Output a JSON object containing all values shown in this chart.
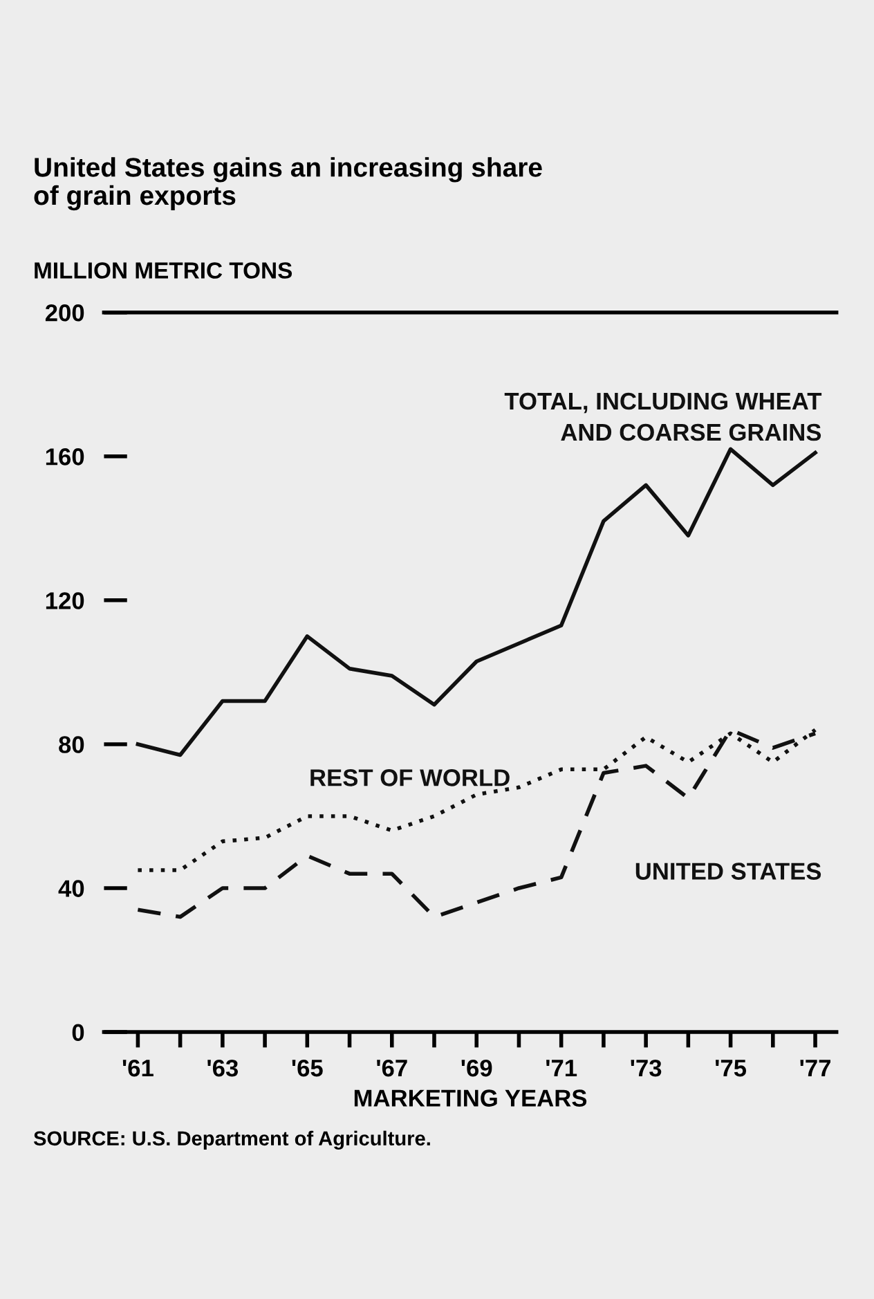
{
  "chart_data": {
    "type": "line",
    "title": "United States gains an increasing share\nof grain exports",
    "ylabel": "MILLION METRIC TONS",
    "xlabel": "MARKETING YEARS",
    "annotations": [
      "SOURCE: U.S. Department of Agriculture."
    ],
    "x": [
      1961,
      1962,
      1963,
      1964,
      1965,
      1966,
      1967,
      1968,
      1969,
      1970,
      1971,
      1972,
      1973,
      1974,
      1975,
      1976,
      1977
    ],
    "series": [
      {
        "name": "TOTAL, INCLUDING WHEAT\nAND COARSE GRAINS",
        "color": "#111111",
        "line_style": "solid",
        "values": [
          80,
          77,
          92,
          92,
          110,
          101,
          99,
          91,
          103,
          108,
          113,
          142,
          152,
          138,
          162,
          152,
          161
        ]
      },
      {
        "name": "REST OF WORLD",
        "color": "#111111",
        "line_style": "dotted",
        "values": [
          45,
          45,
          53,
          54,
          60,
          60,
          56,
          60,
          66,
          68,
          73,
          73,
          82,
          75,
          83,
          75,
          84
        ]
      },
      {
        "name": "UNITED STATES",
        "color": "#111111",
        "line_style": "dashed",
        "values": [
          34,
          32,
          40,
          40,
          49,
          44,
          44,
          32,
          36,
          40,
          43,
          72,
          74,
          65,
          84,
          79,
          83
        ]
      }
    ],
    "xlim": [
      1960.2,
      1977.5
    ],
    "xticks": [
      {
        "value": 1961,
        "label": "'61"
      },
      {
        "value": 1962,
        "label": null
      },
      {
        "value": 1963,
        "label": "'63"
      },
      {
        "value": 1964,
        "label": null
      },
      {
        "value": 1965,
        "label": "'65"
      },
      {
        "value": 1966,
        "label": null
      },
      {
        "value": 1967,
        "label": "'67"
      },
      {
        "value": 1968,
        "label": null
      },
      {
        "value": 1969,
        "label": "'69"
      },
      {
        "value": 1970,
        "label": null
      },
      {
        "value": 1971,
        "label": "'71"
      },
      {
        "value": 1972,
        "label": null
      },
      {
        "value": 1973,
        "label": "'73"
      },
      {
        "value": 1974,
        "label": null
      },
      {
        "value": 1975,
        "label": "'75"
      },
      {
        "value": 1976,
        "label": null
      },
      {
        "value": 1977,
        "label": "'77"
      }
    ],
    "ylim": [
      0,
      200
    ],
    "yticks": [
      0,
      40,
      80,
      120,
      160,
      200
    ],
    "grid": false,
    "legend": false
  }
}
